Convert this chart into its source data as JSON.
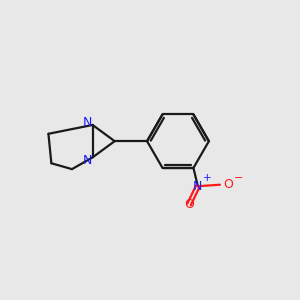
{
  "bg_color": "#e8e8e8",
  "bond_color": "#1a1a1a",
  "N_color": "#1a1aff",
  "O_color": "#ff1a1a",
  "bond_width": 1.6,
  "figsize": [
    3.0,
    3.0
  ],
  "dpi": 100,
  "xlim": [
    0,
    10
  ],
  "ylim": [
    0,
    10
  ]
}
